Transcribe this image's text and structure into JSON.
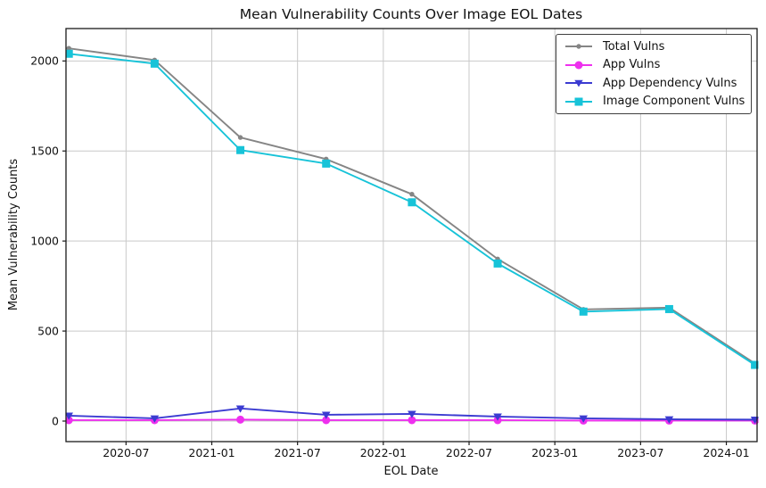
{
  "chart_data": {
    "type": "line",
    "title": "Mean Vulnerability Counts Over Image EOL Dates",
    "xlabel": "EOL Date",
    "ylabel": "Mean Vulnerability Counts",
    "x": [
      "2020-03",
      "2020-09",
      "2021-03",
      "2021-09",
      "2022-03",
      "2022-09",
      "2023-03",
      "2023-09",
      "2024-03"
    ],
    "x_tick_labels": [
      "2020-07",
      "2021-01",
      "2021-07",
      "2022-01",
      "2022-07",
      "2023-01",
      "2023-07",
      "2024-01"
    ],
    "y_ticks": [
      "0",
      "500",
      "1000",
      "1500",
      "2000"
    ],
    "ylim": [
      -114,
      2180
    ],
    "xlim_months": [
      1.8,
      50.15
    ],
    "grid": true,
    "legend_position": "upper right",
    "series": [
      {
        "name": "Total Vulns",
        "color": "#858585",
        "marker": "circle-small",
        "values": [
          2070,
          2005,
          1575,
          1455,
          1260,
          900,
          620,
          630,
          320
        ]
      },
      {
        "name": "App Vulns",
        "color": "#ee30ee",
        "marker": "circle",
        "values": [
          5,
          5,
          8,
          5,
          5,
          5,
          3,
          3,
          3
        ]
      },
      {
        "name": "App Dependency Vulns",
        "color": "#3b3bd1",
        "marker": "triangle-down",
        "values": [
          30,
          15,
          70,
          35,
          40,
          25,
          15,
          10,
          8
        ]
      },
      {
        "name": "Image Component Vulns",
        "color": "#17c3d8",
        "marker": "square",
        "values": [
          2040,
          1985,
          1505,
          1430,
          1215,
          875,
          608,
          622,
          312
        ]
      }
    ],
    "grid_color": "#c9c9c9",
    "spine_color": "#1a1a1a"
  }
}
